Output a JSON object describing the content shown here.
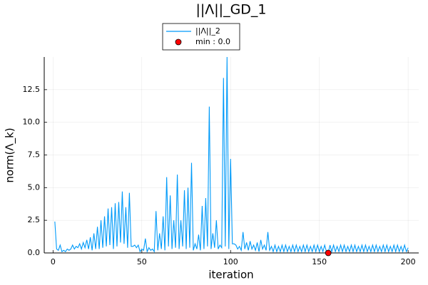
{
  "chart_data": {
    "type": "line",
    "title": "||Λ||_GD_1",
    "x_label": "iteration",
    "y_label": "norm(Λ_k)",
    "xlim": [
      -4.97,
      205.97
    ],
    "xticks": [
      0,
      50,
      100,
      150,
      200
    ],
    "ylim": [
      0,
      15.0
    ],
    "yticks": [
      {
        "value": 0,
        "label": "0.0"
      },
      2.5,
      {
        "value": 5,
        "label": "5.0"
      },
      7.5,
      {
        "value": 10,
        "label": "10.0"
      },
      12.5
    ],
    "grid": true,
    "legend": "outer top",
    "series": [
      {
        "name": "||Λ||_2",
        "type": "line",
        "color": "#009af9",
        "x": [
          1,
          2,
          3,
          4,
          5,
          6,
          7,
          8,
          9,
          10,
          11,
          12,
          13,
          14,
          15,
          16,
          17,
          18,
          19,
          20,
          21,
          22,
          23,
          24,
          25,
          26,
          27,
          28,
          29,
          30,
          31,
          32,
          33,
          34,
          35,
          36,
          37,
          38,
          39,
          40,
          41,
          42,
          43,
          44,
          45,
          46,
          47,
          48,
          49,
          50,
          51,
          52,
          53,
          54,
          55,
          56,
          57,
          58,
          59,
          60,
          61,
          62,
          63,
          64,
          65,
          66,
          67,
          68,
          69,
          70,
          71,
          72,
          73,
          74,
          75,
          76,
          77,
          78,
          79,
          80,
          81,
          82,
          83,
          84,
          85,
          86,
          87,
          88,
          89,
          90,
          91,
          92,
          93,
          94,
          95,
          96,
          97,
          98,
          99,
          100,
          101,
          102,
          103,
          104,
          105,
          106,
          107,
          108,
          109,
          110,
          111,
          112,
          113,
          114,
          115,
          116,
          117,
          118,
          119,
          120,
          121,
          122,
          123,
          124,
          125,
          126,
          127,
          128,
          129,
          130,
          131,
          132,
          133,
          134,
          135,
          136,
          137,
          138,
          139,
          140,
          141,
          142,
          143,
          144,
          145,
          146,
          147,
          148,
          149,
          150,
          151,
          152,
          153,
          154,
          155,
          156,
          157,
          158,
          159,
          160,
          161,
          162,
          163,
          164,
          165,
          166,
          167,
          168,
          169,
          170,
          171,
          172,
          173,
          174,
          175,
          176,
          177,
          178,
          179,
          180,
          181,
          182,
          183,
          184,
          185,
          186,
          187,
          188,
          189,
          190,
          191,
          192,
          193,
          194,
          195,
          196,
          197,
          198,
          199,
          200
        ],
        "values": [
          2.4,
          0.3,
          0.2,
          0.6,
          0.1,
          0.2,
          0.1,
          0.3,
          0.2,
          0.3,
          0.6,
          0.3,
          0.5,
          0.4,
          0.7,
          0.3,
          0.8,
          0.4,
          1.0,
          0.3,
          1.2,
          0.2,
          1.5,
          0.3,
          2.0,
          0.3,
          2.5,
          0.4,
          2.8,
          0.5,
          3.4,
          0.6,
          3.5,
          0.3,
          3.8,
          0.5,
          3.9,
          0.8,
          4.7,
          0.7,
          3.5,
          0.4,
          4.6,
          0.5,
          0.5,
          0.6,
          0.4,
          0.6,
          0.1,
          0.3,
          0.2,
          1.1,
          0.1,
          0.4,
          0.2,
          0.3,
          0.1,
          3.2,
          0.2,
          1.5,
          0.3,
          2.8,
          0.2,
          5.8,
          0.5,
          4.4,
          0.3,
          2.5,
          0.4,
          6.0,
          0.3,
          2.5,
          0.5,
          4.8,
          0.3,
          5.0,
          0.4,
          6.9,
          0.2,
          0.7,
          0.3,
          1.4,
          0.2,
          3.6,
          0.3,
          4.2,
          0.5,
          11.2,
          0.3,
          1.5,
          0.4,
          2.5,
          0.3,
          0.6,
          0.4,
          13.4,
          0.5,
          15.0,
          0.3,
          7.2,
          0.7,
          0.7,
          0.6,
          0.3,
          0.5,
          0.2,
          1.6,
          0.3,
          0.8,
          0.2,
          0.9,
          0.3,
          0.6,
          0.2,
          0.8,
          0.1,
          1.0,
          0.3,
          0.6,
          0.2,
          1.6,
          0.2,
          0.5,
          0.1,
          0.6,
          0.1,
          0.5,
          0.1,
          0.6,
          0.1,
          0.6,
          0.1,
          0.5,
          0.1,
          0.6,
          0.1,
          0.6,
          0.1,
          0.5,
          0.1,
          0.6,
          0.1,
          0.6,
          0.1,
          0.5,
          0.1,
          0.6,
          0.1,
          0.6,
          0.1,
          0.5,
          0.1,
          0.6,
          0.1,
          0.0,
          0.6,
          0.1,
          0.6,
          0.1,
          0.5,
          0.1,
          0.6,
          0.1,
          0.6,
          0.1,
          0.5,
          0.1,
          0.6,
          0.1,
          0.6,
          0.1,
          0.5,
          0.1,
          0.6,
          0.1,
          0.6,
          0.1,
          0.5,
          0.1,
          0.6,
          0.1,
          0.6,
          0.1,
          0.5,
          0.1,
          0.6,
          0.1,
          0.6,
          0.1,
          0.5,
          0.1,
          0.6,
          0.1,
          0.6,
          0.1,
          0.5,
          0.1,
          0.6,
          0.1,
          0.4
        ]
      },
      {
        "name": "min : 0.0",
        "type": "scatter",
        "color": "#ff0000",
        "x": [
          155
        ],
        "values": [
          0.0
        ]
      }
    ]
  }
}
